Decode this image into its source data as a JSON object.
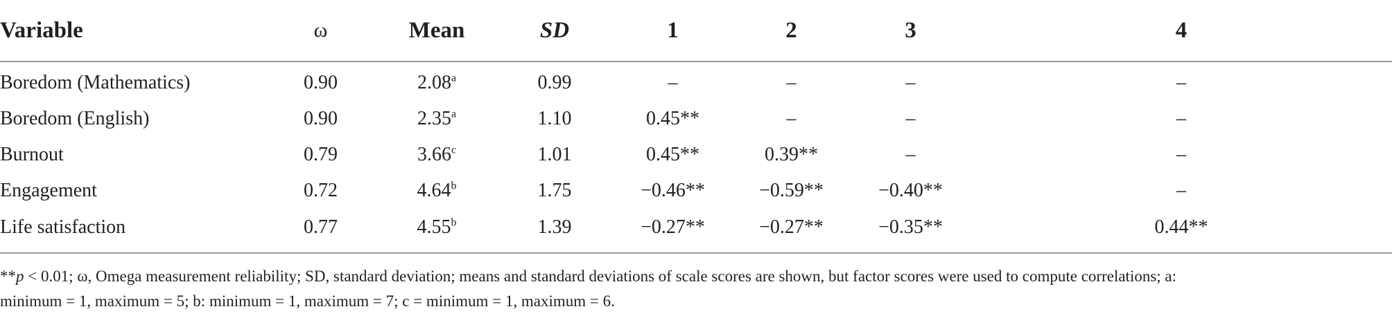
{
  "table": {
    "headers": [
      "Variable",
      "ω",
      "Mean",
      "SD",
      "1",
      "2",
      "3",
      "4"
    ],
    "rows": [
      {
        "variable": "Boredom (Mathematics)",
        "omega": "0.90",
        "mean": "2.08",
        "mean_sup": "a",
        "sd": "0.99",
        "c1": "–",
        "c2": "–",
        "c3": "–",
        "c4": "–"
      },
      {
        "variable": "Boredom (English)",
        "omega": "0.90",
        "mean": "2.35",
        "mean_sup": "a",
        "sd": "1.10",
        "c1": "0.45**",
        "c2": "–",
        "c3": "–",
        "c4": "–"
      },
      {
        "variable": "Burnout",
        "omega": "0.79",
        "mean": "3.66",
        "mean_sup": "c",
        "sd": "1.01",
        "c1": "0.45**",
        "c2": "0.39**",
        "c3": "–",
        "c4": "–"
      },
      {
        "variable": "Engagement",
        "omega": "0.72",
        "mean": "4.64",
        "mean_sup": "b",
        "sd": "1.75",
        "c1": "−0.46**",
        "c2": "−0.59**",
        "c3": "−0.40**",
        "c4": "–"
      },
      {
        "variable": "Life satisfaction",
        "omega": "0.77",
        "mean": "4.55",
        "mean_sup": "b",
        "sd": "1.39",
        "c1": "−0.27**",
        "c2": "−0.27**",
        "c3": "−0.35**",
        "c4": "0.44**"
      }
    ]
  },
  "footnote": {
    "stars": "**",
    "p": "p",
    "rest_line1": " < 0.01; ω, Omega measurement reliability; SD, standard deviation; means and standard deviations of scale scores are shown, but factor scores were used to compute correlations; a:",
    "line2": "minimum = 1, maximum = 5; b: minimum = 1, maximum = 7; c = minimum = 1, maximum = 6."
  }
}
